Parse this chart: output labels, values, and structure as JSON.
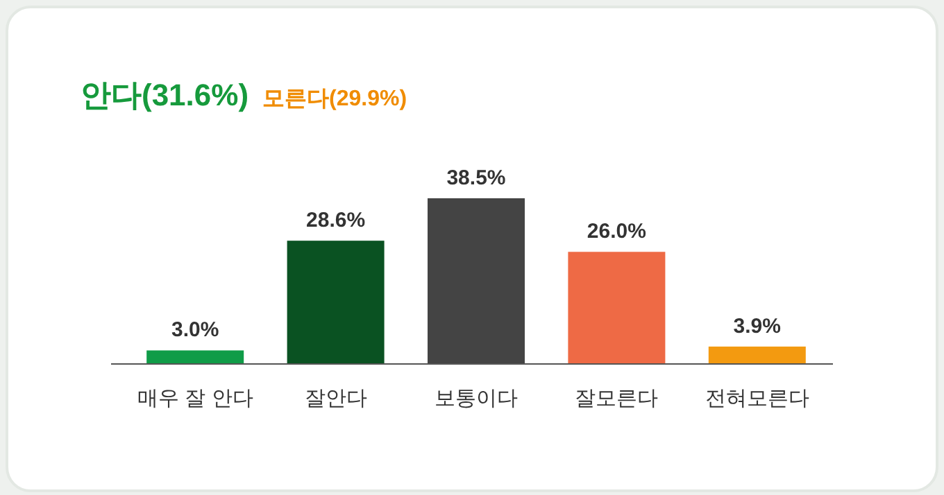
{
  "chart_data": {
    "type": "bar",
    "title": "안다(31.6%)",
    "subtitle": "모른다(29.9%)",
    "categories": [
      "매우 잘 안다",
      "잘안다",
      "보통이다",
      "잘모른다",
      "전혀모른다"
    ],
    "values": [
      3.0,
      28.6,
      38.5,
      26.0,
      3.9
    ],
    "colors": [
      "#109c48",
      "#0a5222",
      "#444444",
      "#ee6a45",
      "#f39a10"
    ],
    "value_labels": [
      "3.0%",
      "28.6%",
      "38.5%",
      "26.0%",
      "3.9%"
    ]
  }
}
